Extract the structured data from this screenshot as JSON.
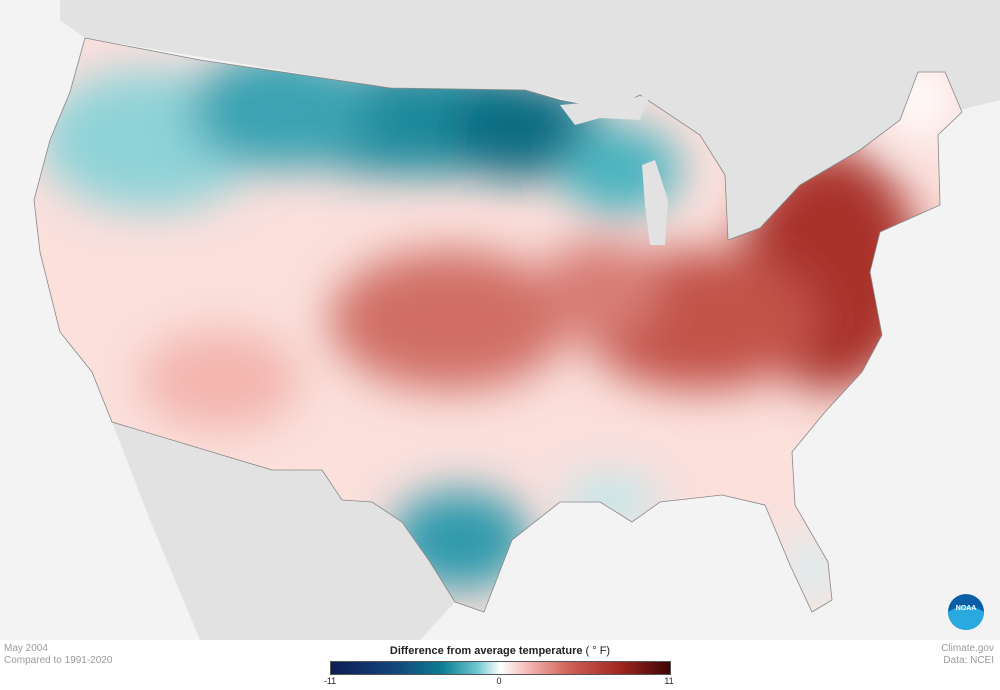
{
  "map": {
    "period": "May 2004",
    "baseline": "Compared to 1991-2020",
    "credit": "Climate.gov",
    "source": "Data: NCEI",
    "logo_text": "NOAA"
  },
  "legend": {
    "title": "Difference from average temperature",
    "unit": "( ° F)",
    "min_label": "-11",
    "mid_label": "0",
    "max_label": "11",
    "range": [
      -11,
      11
    ],
    "colors": {
      "cold_extreme": "#0e1e55",
      "cold": "#0d7e93",
      "neutral": "#ffffff",
      "warm": "#d0625a",
      "warm_extreme": "#3e0506"
    }
  }
}
